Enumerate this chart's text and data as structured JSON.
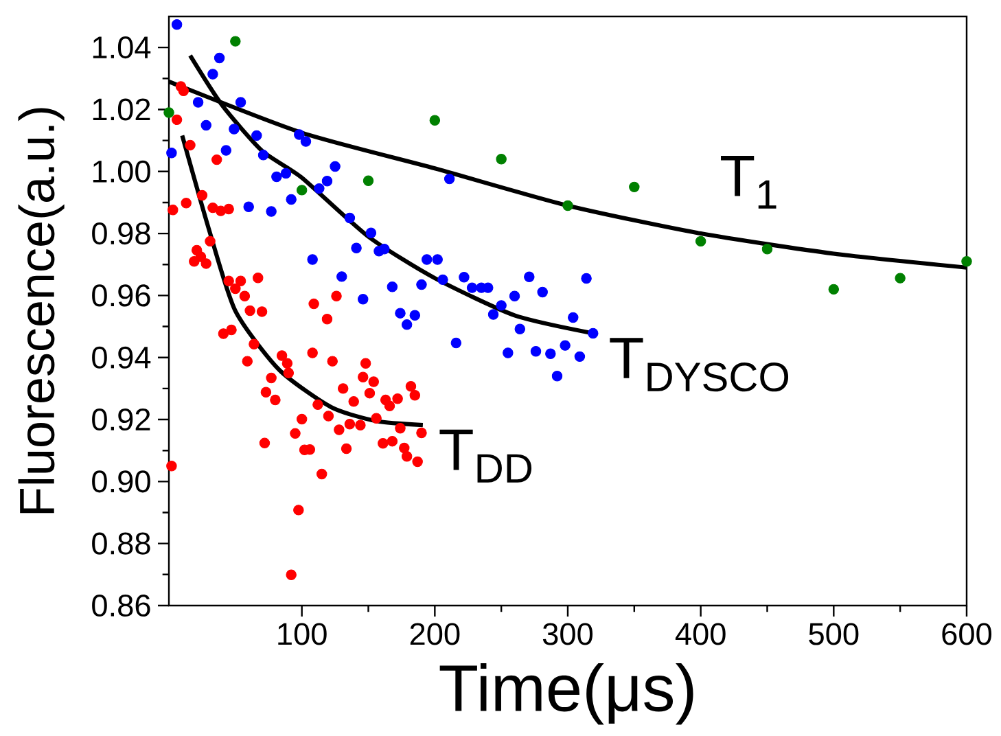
{
  "chart_data": {
    "type": "scatter",
    "xlabel": "Time(μs)",
    "ylabel": "Fluorescence(a.u.)",
    "xlim": [
      0,
      600
    ],
    "ylim": [
      0.86,
      1.05
    ],
    "xticks": [
      100,
      200,
      300,
      400,
      500,
      600
    ],
    "yticks": [
      0.86,
      0.88,
      {
        "value": 0.9,
        "label": "0.90"
      },
      0.92,
      0.94,
      0.96,
      0.98,
      {
        "value": 1.0,
        "label": "1.00"
      },
      1.02,
      1.04
    ],
    "grid": false,
    "line_style": "solid",
    "series": [
      {
        "type": "scatter",
        "marker": "circle",
        "color": "#ff0000",
        "x": [
          9,
          11,
          6,
          16,
          36,
          3,
          13,
          25,
          33,
          39,
          45,
          21,
          19,
          28,
          31,
          24,
          45,
          54,
          50,
          67,
          57,
          61,
          70,
          41,
          47,
          64,
          85,
          89,
          108,
          123,
          148,
          109,
          119,
          126,
          59,
          2,
          77,
          80,
          73,
          72,
          95,
          100,
          102,
          106,
          115,
          97.5,
          92,
          90,
          112,
          120,
          131,
          128,
          133.5,
          136,
          139,
          144,
          146,
          151,
          154,
          156,
          161,
          163,
          166,
          168,
          172,
          174,
          177,
          179,
          182,
          185,
          187,
          190
        ],
        "values": [
          1.0274,
          1.026,
          1.0167,
          1.0085,
          1.0038,
          0.9876,
          0.9898,
          0.9923,
          0.9883,
          0.9873,
          0.9879,
          0.9746,
          0.971,
          0.9703,
          0.9775,
          0.9725,
          0.9647,
          0.9647,
          0.9622,
          0.9657,
          0.9598,
          0.9551,
          0.9548,
          0.9477,
          0.9489,
          0.9443,
          0.9406,
          0.9381,
          0.9415,
          0.9388,
          0.9381,
          0.9573,
          0.9524,
          0.9598,
          0.9388,
          0.905,
          0.9334,
          0.9263,
          0.9288,
          0.9124,
          0.9155,
          0.9201,
          0.9102,
          0.9103,
          0.9024,
          0.8908,
          0.8699,
          0.935,
          0.9248,
          0.9211,
          0.93,
          0.9167,
          0.9106,
          0.9185,
          0.9258,
          0.9182,
          0.9337,
          0.9285,
          0.9322,
          0.9204,
          0.9123,
          0.9263,
          0.9244,
          0.913,
          0.9267,
          0.9172,
          0.9108,
          0.9081,
          0.9307,
          0.9278,
          0.9064,
          0.9157
        ]
      },
      {
        "type": "scatter",
        "marker": "circle",
        "color": "#0000ff",
        "x": [
          6,
          38,
          33,
          22,
          54,
          28,
          49,
          66,
          43,
          2,
          71,
          98,
          103,
          88,
          81,
          92,
          60,
          77,
          125,
          119,
          113,
          136,
          152,
          141,
          162,
          158,
          108,
          130,
          146,
          168,
          174,
          179,
          185,
          190,
          194,
          202,
          206,
          216,
          222,
          228,
          235,
          240,
          244,
          250,
          255,
          260,
          264,
          211,
          271,
          281,
          314,
          304,
          319,
          276,
          287,
          298,
          309,
          292
        ],
        "values": [
          1.0474,
          1.0366,
          1.0314,
          1.0223,
          1.0223,
          1.0149,
          1.0137,
          1.0116,
          1.0068,
          1.006,
          1.0053,
          1.0119,
          1.0097,
          0.9994,
          0.9983,
          0.991,
          0.9886,
          0.9871,
          1.0016,
          0.9969,
          0.9945,
          0.985,
          0.9802,
          0.9753,
          0.975,
          0.9743,
          0.9716,
          0.9661,
          0.9588,
          0.9628,
          0.9543,
          0.9506,
          0.9536,
          0.9635,
          0.9716,
          0.9716,
          0.9651,
          0.9447,
          0.9659,
          0.9625,
          0.9625,
          0.9625,
          0.9539,
          0.9568,
          0.9415,
          0.9598,
          0.9492,
          0.9976,
          0.966,
          0.9611,
          0.9655,
          0.9529,
          0.9478,
          0.942,
          0.9412,
          0.9439,
          0.9403,
          0.934
        ]
      },
      {
        "type": "scatter",
        "marker": "circle",
        "color": "#008000",
        "x": [
          0,
          50,
          100,
          150,
          200,
          250,
          300,
          350,
          400,
          450,
          500,
          550,
          600
        ],
        "values": [
          1.019,
          1.042,
          0.994,
          0.997,
          1.0165,
          1.004,
          0.989,
          0.995,
          0.9775,
          0.975,
          0.962,
          0.9656,
          0.971
        ]
      },
      {
        "type": "line",
        "marker": "none",
        "name": "T$_{1}$",
        "color": "#000000",
        "x": [
          0,
          100,
          200,
          300,
          400,
          500,
          600
        ],
        "values": [
          1.029,
          1.0125,
          1.001,
          0.989,
          0.98,
          0.9735,
          0.969
        ]
      },
      {
        "type": "line",
        "marker": "none",
        "name": "T$_{DYSCO}$",
        "color": "#000000",
        "x": [
          16,
          40,
          70,
          100,
          150,
          200,
          260,
          319
        ],
        "values": [
          1.0374,
          1.0214,
          1.0067,
          0.998,
          0.979,
          0.9656,
          0.9536,
          0.9478
        ]
      },
      {
        "type": "line",
        "marker": "none",
        "name": "T$_{DD}$",
        "color": "#000000",
        "x": [
          10,
          30,
          50,
          83,
          122,
          156,
          191
        ],
        "values": [
          1.0116,
          0.9815,
          0.955,
          0.936,
          0.924,
          0.9195,
          0.9182
        ]
      }
    ]
  }
}
